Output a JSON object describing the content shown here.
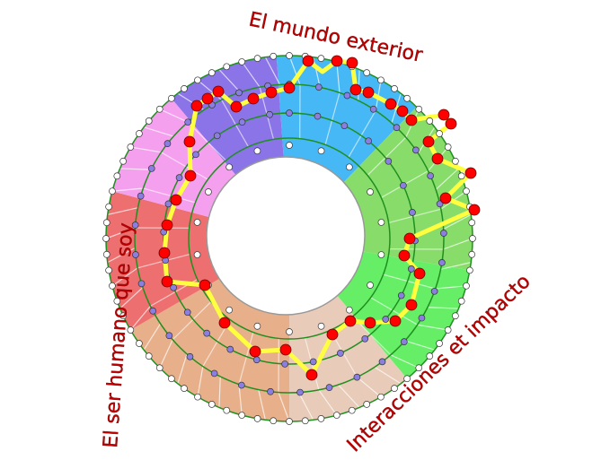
{
  "labels": {
    "top": "El mundo exterior",
    "left": "El ser humano que soy",
    "bottom_right": "Interacciones et impacto"
  },
  "colors": {
    "label": "#c00000",
    "ring_line": "#1f8f1f",
    "path": "#ffff40",
    "key_node": "#ff0000",
    "inner_node": "#8a7fe0",
    "outer_node": "#ffffff"
  },
  "sectors": [
    {
      "color": "#45b8f5"
    },
    {
      "color": "#88dd6a"
    },
    {
      "color": "#66ee66"
    },
    {
      "color": "#e8cbb8"
    },
    {
      "color": "#e8b08a"
    },
    {
      "color": "#ee6f6f"
    },
    {
      "color": "#f5a0ee"
    },
    {
      "color": "#8a74e8"
    }
  ]
}
